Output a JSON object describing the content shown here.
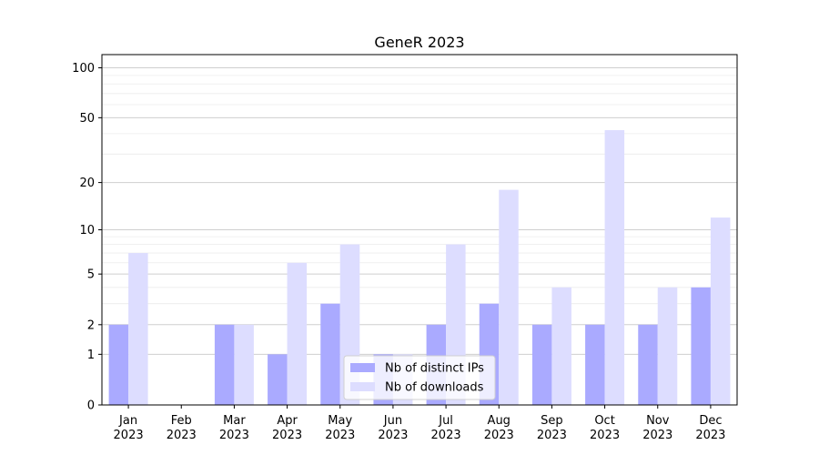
{
  "chart_data": {
    "type": "bar",
    "title": "GeneR 2023",
    "xlabel": "",
    "ylabel": "",
    "yscale": "log1p",
    "ylim": [
      0,
      120
    ],
    "yticks": [
      0,
      1,
      2,
      5,
      10,
      20,
      50,
      100
    ],
    "grid": "horizontal",
    "legend_position": "bottom-center",
    "categories": [
      {
        "month": "Jan",
        "year": "2023"
      },
      {
        "month": "Feb",
        "year": "2023"
      },
      {
        "month": "Mar",
        "year": "2023"
      },
      {
        "month": "Apr",
        "year": "2023"
      },
      {
        "month": "May",
        "year": "2023"
      },
      {
        "month": "Jun",
        "year": "2023"
      },
      {
        "month": "Jul",
        "year": "2023"
      },
      {
        "month": "Aug",
        "year": "2023"
      },
      {
        "month": "Sep",
        "year": "2023"
      },
      {
        "month": "Oct",
        "year": "2023"
      },
      {
        "month": "Nov",
        "year": "2023"
      },
      {
        "month": "Dec",
        "year": "2023"
      }
    ],
    "series": [
      {
        "name": "Nb of distinct IPs",
        "color": "#aaaaff",
        "values": [
          2,
          0,
          2,
          1,
          3,
          1,
          2,
          3,
          2,
          2,
          2,
          4
        ]
      },
      {
        "name": "Nb of downloads",
        "color": "#ddddff",
        "values": [
          7,
          0,
          2,
          6,
          8,
          1,
          8,
          18,
          4,
          42,
          4,
          12
        ]
      }
    ]
  }
}
